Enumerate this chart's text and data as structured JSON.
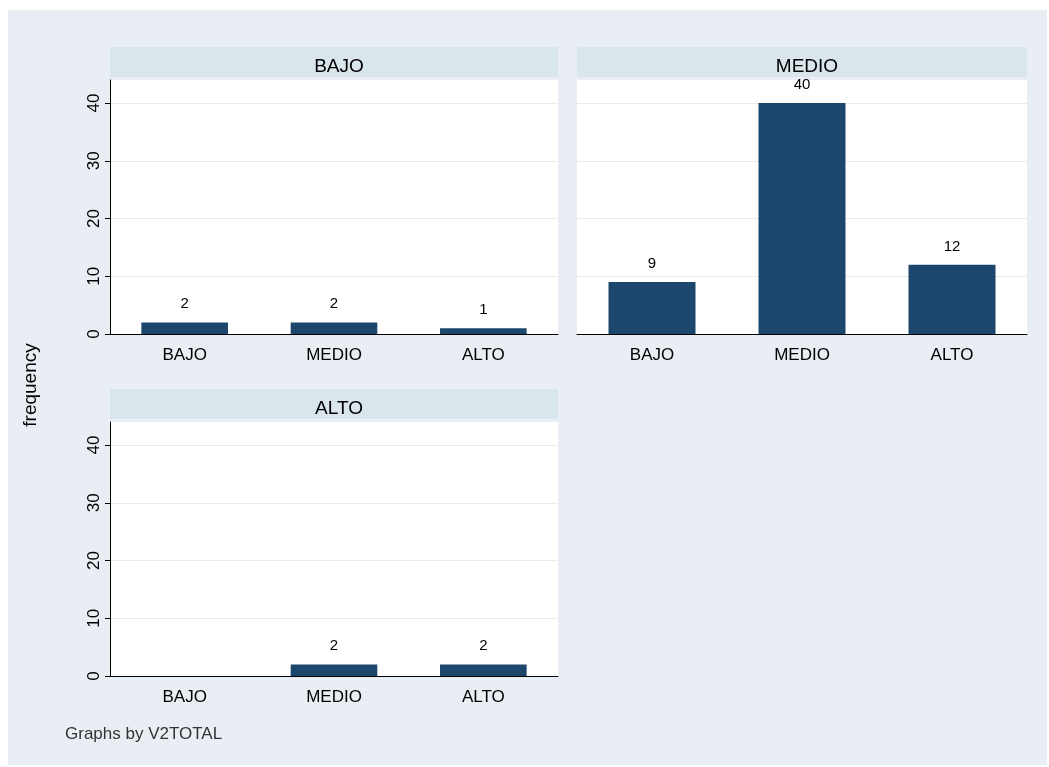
{
  "chart_data": [
    {
      "type": "bar",
      "title": "BAJO",
      "ylabel": "frequency",
      "categories": [
        "BAJO",
        "MEDIO",
        "ALTO"
      ],
      "values": [
        2,
        2,
        1
      ],
      "value_labels": [
        "2",
        "2",
        "1"
      ],
      "color": "#1c466b",
      "ylim": [
        0,
        44
      ],
      "yticks": [
        0,
        10,
        20,
        30,
        40
      ],
      "grid": "y"
    },
    {
      "type": "bar",
      "title": "MEDIO",
      "categories": [
        "BAJO",
        "MEDIO",
        "ALTO"
      ],
      "values": [
        9,
        40,
        12
      ],
      "value_labels": [
        "9",
        "40",
        "12"
      ],
      "color": "#1c466b",
      "ylim": [
        0,
        44
      ],
      "yticks": [
        0,
        10,
        20,
        30,
        40
      ],
      "grid": "y",
      "tick_labels": "x"
    },
    {
      "type": "bar",
      "title": "ALTO",
      "categories": [
        "BAJO",
        "MEDIO",
        "ALTO"
      ],
      "values": [
        0,
        2,
        2
      ],
      "value_labels": [
        null,
        "2",
        "2"
      ],
      "color": "#1c466b",
      "ylim": [
        0,
        44
      ],
      "yticks": [
        0,
        10,
        20,
        30,
        40
      ],
      "grid": "y",
      "annotations": [
        "Graphs by V2TOTAL"
      ]
    }
  ]
}
